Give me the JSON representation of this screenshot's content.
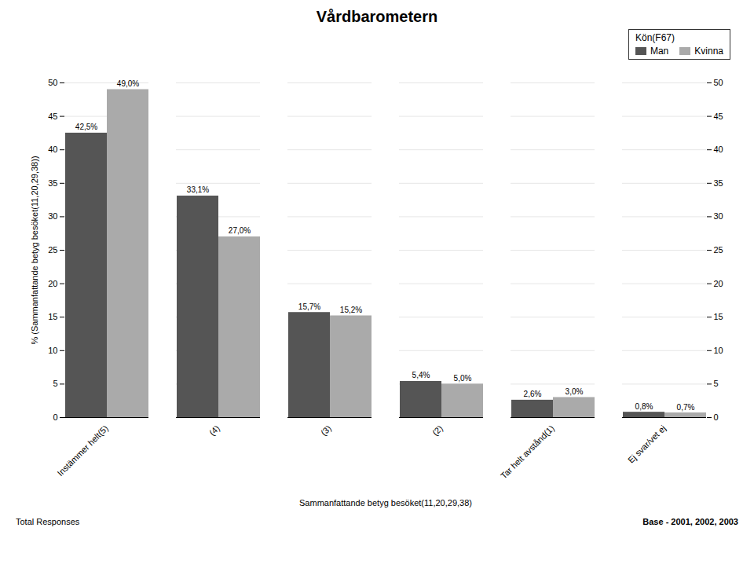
{
  "chart_data": {
    "type": "bar",
    "title": "Vårdbarometern",
    "xlabel": "Sammanfattande betyg besöket(11,20,29,38)",
    "ylabel": "% (Sammanfattande betyg besöket(11,20,29,38))",
    "legend_title": "Kön(F67)",
    "annotations": [
      "Total Responses",
      "Base - 2001, 2002, 2003"
    ],
    "categories": [
      "Instämmer helt(5)",
      "(4)",
      "(3)",
      "(2)",
      "Tar helt avstånd(1)",
      "Ej svar/vet ej"
    ],
    "series": [
      {
        "name": "Man",
        "color": "#555555",
        "values": [
          42.5,
          33.1,
          15.7,
          5.4,
          2.6,
          0.8
        ],
        "value_labels": [
          "42,5%",
          "33,1%",
          "15,7%",
          "5,4%",
          "2,6%",
          "0,8%"
        ]
      },
      {
        "name": "Kvinna",
        "color": "#aaaaaa",
        "values": [
          49.0,
          27.0,
          15.2,
          5.0,
          3.0,
          0.7
        ],
        "value_labels": [
          "49,0%",
          "27,0%",
          "15,2%",
          "5,0%",
          "3,0%",
          "0,7%"
        ]
      }
    ],
    "ylim": [
      0,
      50
    ],
    "yticks": [
      0,
      5,
      10,
      15,
      20,
      25,
      30,
      35,
      40,
      45,
      50
    ],
    "grid": true,
    "legend": "upper right",
    "data_labels": true
  }
}
